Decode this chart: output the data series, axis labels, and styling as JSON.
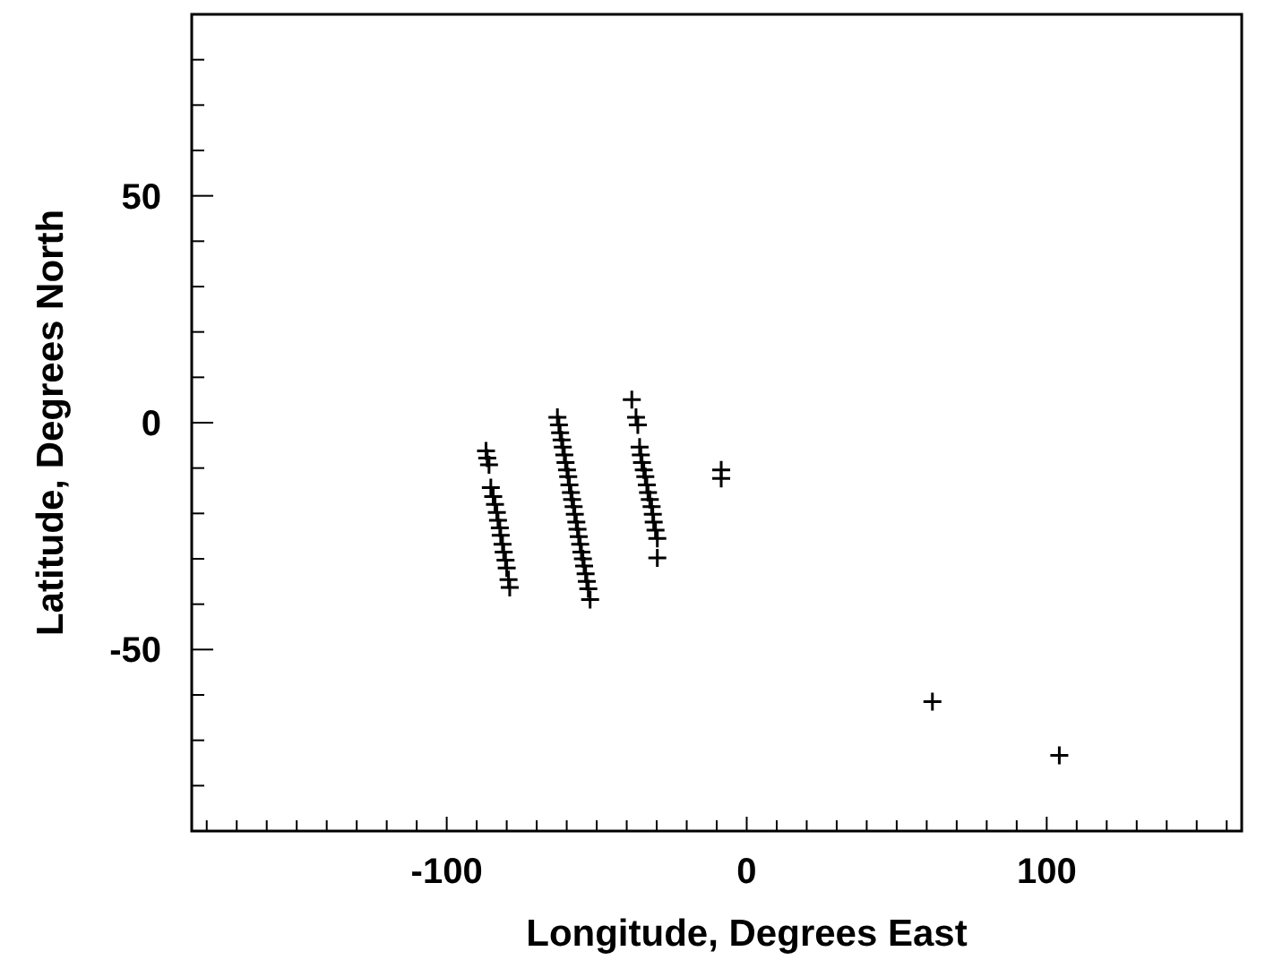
{
  "chart_data": {
    "type": "scatter",
    "xlabel": "Longitude, Degrees East",
    "ylabel": "Latitude, Degrees North",
    "marker": "cross",
    "grid": false,
    "xlim": [
      -185,
      165
    ],
    "ylim": [
      -90,
      90
    ],
    "xticks": [
      {
        "value": -180,
        "label": null
      },
      {
        "value": -170,
        "label": null
      },
      {
        "value": -160,
        "label": null
      },
      {
        "value": -150,
        "label": null
      },
      {
        "value": -140,
        "label": null
      },
      {
        "value": -130,
        "label": null
      },
      {
        "value": -120,
        "label": null
      },
      {
        "value": -110,
        "label": null
      },
      -100,
      {
        "value": -90,
        "label": null
      },
      {
        "value": -80,
        "label": null
      },
      {
        "value": -70,
        "label": null
      },
      {
        "value": -60,
        "label": null
      },
      {
        "value": -50,
        "label": null
      },
      {
        "value": -40,
        "label": null
      },
      {
        "value": -30,
        "label": null
      },
      {
        "value": -20,
        "label": null
      },
      {
        "value": -10,
        "label": null
      },
      0,
      {
        "value": 10,
        "label": null
      },
      {
        "value": 20,
        "label": null
      },
      {
        "value": 30,
        "label": null
      },
      {
        "value": 40,
        "label": null
      },
      {
        "value": 50,
        "label": null
      },
      {
        "value": 60,
        "label": null
      },
      {
        "value": 70,
        "label": null
      },
      {
        "value": 80,
        "label": null
      },
      {
        "value": 90,
        "label": null
      },
      100,
      {
        "value": 110,
        "label": null
      },
      {
        "value": 120,
        "label": null
      },
      {
        "value": 130,
        "label": null
      },
      {
        "value": 140,
        "label": null
      },
      {
        "value": 150,
        "label": null
      },
      {
        "value": 160,
        "label": null
      }
    ],
    "yticks": [
      {
        "value": -80,
        "label": null
      },
      {
        "value": -70,
        "label": null
      },
      {
        "value": -60,
        "label": null
      },
      -50,
      {
        "value": -40,
        "label": null
      },
      {
        "value": -30,
        "label": null
      },
      {
        "value": -20,
        "label": null
      },
      {
        "value": -10,
        "label": null
      },
      0,
      {
        "value": 10,
        "label": null
      },
      {
        "value": 20,
        "label": null
      },
      {
        "value": 30,
        "label": null
      },
      {
        "value": 40,
        "label": null
      },
      50,
      {
        "value": 60,
        "label": null
      },
      {
        "value": 70,
        "label": null
      },
      {
        "value": 80,
        "label": null
      }
    ],
    "series": [
      {
        "color": "#000000",
        "x": [
          -86.9,
          -86.5,
          -85.9,
          -85.3,
          -84.5,
          -83.9,
          -83.3,
          -82.9,
          -82.3,
          -82,
          -81.4,
          -81,
          -80.4,
          -80,
          -79.4,
          -79,
          -63.1,
          -62.6,
          -62.2,
          -61.7,
          -61.3,
          -60.8,
          -60.4,
          -59.9,
          -59.5,
          -59.1,
          -58.6,
          -58.2,
          -57.7,
          -57.3,
          -56.8,
          -56.4,
          -56,
          -55.5,
          -55.1,
          -54.6,
          -54.2,
          -53.7,
          -53.3,
          -52.8,
          -52.2,
          -38.3,
          -36.9,
          -36.3,
          -35.7,
          -35.3,
          -34.9,
          -34.3,
          -33.8,
          -33.3,
          -32.9,
          -32.3,
          -31.7,
          -31.3,
          -31,
          -30.4,
          -29.8,
          -29.8,
          -8.5,
          -8.5,
          61.9,
          104.2
        ],
        "values": [
          -6.2,
          -7.8,
          -9.3,
          -14.3,
          -16.3,
          -18,
          -19.8,
          -21.5,
          -23.2,
          -24.8,
          -26.8,
          -28.5,
          -30.3,
          -32,
          -34.6,
          -36.3,
          1.2,
          -0.5,
          -2.2,
          -3.8,
          -5.4,
          -7.1,
          -8.8,
          -10.4,
          -11.9,
          -13.7,
          -15.4,
          -16.9,
          -18.5,
          -20.2,
          -21.9,
          -23.5,
          -25.1,
          -26.8,
          -28.5,
          -30,
          -31.6,
          -33.3,
          -35,
          -36.6,
          -39,
          5.1,
          1.2,
          -0.5,
          -5.4,
          -7.1,
          -8.8,
          -10.4,
          -11.9,
          -13.7,
          -15.4,
          -16.9,
          -18.5,
          -20.2,
          -21.9,
          -23.7,
          -25.5,
          -29.8,
          -10.4,
          -12.3,
          -61.5,
          -73.3
        ]
      }
    ]
  }
}
